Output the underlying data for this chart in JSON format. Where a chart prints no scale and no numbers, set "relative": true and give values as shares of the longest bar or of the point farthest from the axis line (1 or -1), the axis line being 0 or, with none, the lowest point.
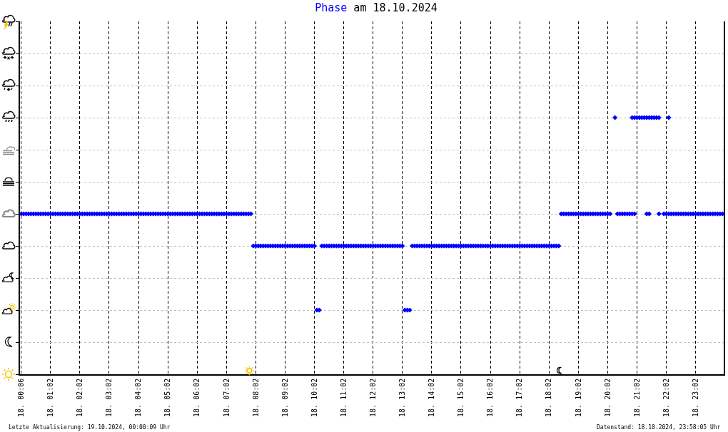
{
  "chart_data": {
    "type": "scatter",
    "title": "Phase am 18.10.2024",
    "relative": true,
    "categories": [
      "18. 00:06",
      null,
      null,
      null,
      null,
      null,
      null,
      null,
      null,
      null,
      null,
      null,
      "18. 01:02",
      null,
      null,
      null,
      null,
      null,
      null,
      null,
      null,
      null,
      null,
      null,
      "18. 02:02",
      null,
      null,
      null,
      null,
      null,
      null,
      null,
      null,
      null,
      null,
      null,
      "18. 03:02",
      null,
      null,
      null,
      null,
      null,
      null,
      null,
      null,
      null,
      null,
      null,
      "18. 04:02",
      null,
      null,
      null,
      null,
      null,
      null,
      null,
      null,
      null,
      null,
      null,
      "18. 05:02",
      null,
      null,
      null,
      null,
      null,
      null,
      null,
      null,
      null,
      null,
      null,
      "18. 06:02",
      null,
      null,
      null,
      null,
      null,
      null,
      null,
      null,
      null,
      null,
      null,
      "18. 07:02",
      null,
      null,
      null,
      null,
      null,
      null,
      null,
      null,
      null,
      null,
      null,
      "18. 08:02",
      null,
      null,
      null,
      null,
      null,
      null,
      null,
      null,
      null,
      null,
      null,
      "18. 09:02",
      null,
      null,
      null,
      null,
      null,
      null,
      null,
      null,
      null,
      null,
      null,
      "18. 10:02",
      null,
      null,
      null,
      null,
      null,
      null,
      null,
      null,
      null,
      null,
      null,
      "18. 11:02",
      null,
      null,
      null,
      null,
      null,
      null,
      null,
      null,
      null,
      null,
      null,
      "18. 12:02",
      null,
      null,
      null,
      null,
      null,
      null,
      null,
      null,
      null,
      null,
      null,
      "18. 13:02",
      null,
      null,
      null,
      null,
      null,
      null,
      null,
      null,
      null,
      null,
      null,
      "18. 14:02",
      null,
      null,
      null,
      null,
      null,
      null,
      null,
      null,
      null,
      null,
      null,
      "18. 15:02",
      null,
      null,
      null,
      null,
      null,
      null,
      null,
      null,
      null,
      null,
      null,
      "18. 16:02",
      null,
      null,
      null,
      null,
      null,
      null,
      null,
      null,
      null,
      null,
      null,
      "18. 17:02",
      null,
      null,
      null,
      null,
      null,
      null,
      null,
      null,
      null,
      null,
      null,
      "18. 18:02",
      null,
      null,
      null,
      null,
      null,
      null,
      null,
      null,
      null,
      null,
      null,
      "18. 19:02",
      null,
      null,
      null,
      null,
      null,
      null,
      null,
      null,
      null,
      null,
      null,
      "18. 20:02",
      null,
      null,
      null,
      null,
      null,
      null,
      null,
      null,
      null,
      null,
      null,
      "18. 21:02",
      null,
      null,
      null,
      null,
      null,
      null,
      null,
      null,
      null,
      null,
      null,
      "18. 22:02",
      null,
      null,
      null,
      null,
      null,
      null,
      null,
      null,
      null,
      null,
      null,
      "18. 23:02",
      null,
      null,
      null,
      null,
      null,
      null,
      null,
      null,
      null,
      null,
      null
    ],
    "series": [
      {
        "color": "#0000ff",
        "values": [
          0.625,
          0.625,
          0.625,
          0.625,
          0.625,
          0.625,
          0.625,
          0.625,
          0.625,
          0.625,
          0.625,
          0.625,
          0.625,
          0.625,
          0.625,
          0.625,
          0.625,
          0.625,
          0.625,
          0.625,
          0.625,
          0.625,
          0.625,
          0.625,
          0.625,
          0.625,
          0.625,
          0.625,
          0.625,
          0.625,
          0.625,
          0.625,
          0.625,
          0.625,
          0.625,
          0.625,
          0.625,
          0.625,
          0.625,
          0.625,
          0.625,
          0.625,
          0.625,
          0.625,
          0.625,
          0.625,
          0.625,
          0.625,
          0.625,
          0.625,
          0.625,
          0.625,
          0.625,
          0.625,
          0.625,
          0.625,
          0.625,
          0.625,
          0.625,
          0.625,
          0.625,
          0.625,
          0.625,
          0.625,
          0.625,
          0.625,
          0.625,
          0.625,
          0.625,
          0.625,
          0.625,
          0.625,
          0.625,
          0.625,
          0.625,
          0.625,
          0.625,
          0.625,
          0.625,
          0.625,
          0.625,
          0.625,
          0.625,
          0.625,
          0.625,
          0.625,
          0.625,
          0.625,
          0.625,
          0.625,
          0.625,
          0.625,
          0.625,
          0.625,
          0.625,
          0.5,
          0.5,
          0.5,
          0.5,
          0.5,
          0.5,
          0.5,
          0.5,
          0.5,
          0.5,
          0.5,
          0.5,
          0.5,
          0.5,
          0.5,
          0.5,
          0.5,
          0.5,
          0.5,
          0.5,
          0.5,
          0.5,
          0.5,
          0.5,
          0.5,
          0.5,
          0.25,
          0.25,
          0.5,
          0.5,
          0.5,
          0.5,
          0.5,
          0.5,
          0.5,
          0.5,
          0.5,
          0.5,
          0.5,
          0.5,
          0.5,
          0.5,
          0.5,
          0.5,
          0.5,
          0.5,
          0.5,
          0.5,
          0.5,
          0.5,
          0.5,
          0.5,
          0.5,
          0.5,
          0.5,
          0.5,
          0.5,
          0.5,
          0.5,
          0.5,
          0.5,
          0.5,
          0.25,
          0.25,
          0.25,
          0.5,
          0.5,
          0.5,
          0.5,
          0.5,
          0.5,
          0.5,
          0.5,
          0.5,
          0.5,
          0.5,
          0.5,
          0.5,
          0.5,
          0.5,
          0.5,
          0.5,
          0.5,
          0.5,
          0.5,
          0.5,
          0.5,
          0.5,
          0.5,
          0.5,
          0.5,
          0.5,
          0.5,
          0.5,
          0.5,
          0.5,
          0.5,
          0.5,
          0.5,
          0.5,
          0.5,
          0.5,
          0.5,
          0.5,
          0.5,
          0.5,
          0.5,
          0.5,
          0.5,
          0.5,
          0.5,
          0.5,
          0.5,
          0.5,
          0.5,
          0.5,
          0.5,
          0.5,
          0.5,
          0.5,
          0.5,
          0.5,
          0.5,
          0.5,
          0.5,
          0.5,
          0.625,
          0.625,
          0.625,
          0.625,
          0.625,
          0.625,
          0.625,
          0.625,
          0.625,
          0.625,
          0.625,
          0.625,
          0.625,
          0.625,
          0.625,
          0.625,
          0.625,
          0.625,
          0.625,
          0.625,
          0.625,
          null,
          1,
          0.625,
          0.625,
          0.625,
          0.625,
          0.625,
          0.625,
          0.625,
          0.625,
          1,
          1,
          1,
          1,
          0.625,
          0.625,
          1,
          1,
          1,
          0.625,
          null,
          0.625,
          0.625,
          0.625,
          0.625,
          0.625,
          0.625,
          0.625,
          0.625,
          0.625,
          0.625,
          0.625,
          0.625,
          0.625,
          0.625,
          0.625,
          0.625,
          0.625,
          0.625,
          0.625,
          0.625,
          0.625,
          0.625,
          0.625,
          0.625,
          0.625
        ]
      },
      {
        "color": "#0000ff",
        "values": [
          null,
          null,
          null,
          null,
          null,
          null,
          null,
          null,
          null,
          null,
          null,
          null,
          null,
          null,
          null,
          null,
          null,
          null,
          null,
          null,
          null,
          null,
          null,
          null,
          null,
          null,
          null,
          null,
          null,
          null,
          null,
          null,
          null,
          null,
          null,
          null,
          null,
          null,
          null,
          null,
          null,
          null,
          null,
          null,
          null,
          null,
          null,
          null,
          null,
          null,
          null,
          null,
          null,
          null,
          null,
          null,
          null,
          null,
          null,
          null,
          null,
          null,
          null,
          null,
          null,
          null,
          null,
          null,
          null,
          null,
          null,
          null,
          null,
          null,
          null,
          null,
          null,
          null,
          null,
          null,
          null,
          null,
          null,
          null,
          null,
          null,
          null,
          null,
          null,
          null,
          null,
          null,
          null,
          null,
          null,
          null,
          null,
          null,
          null,
          null,
          null,
          null,
          null,
          null,
          null,
          null,
          null,
          null,
          null,
          null,
          null,
          null,
          null,
          null,
          null,
          null,
          null,
          null,
          null,
          null,
          null,
          null,
          null,
          null,
          null,
          null,
          null,
          null,
          null,
          null,
          null,
          null,
          null,
          null,
          null,
          null,
          null,
          null,
          null,
          null,
          null,
          null,
          null,
          null,
          null,
          null,
          null,
          null,
          null,
          null,
          null,
          null,
          null,
          null,
          null,
          null,
          null,
          null,
          null,
          null,
          null,
          null,
          null,
          null,
          null,
          null,
          null,
          null,
          null,
          null,
          null,
          null,
          null,
          null,
          null,
          null,
          null,
          null,
          null,
          null,
          null,
          null,
          null,
          null,
          null,
          null,
          null,
          null,
          null,
          null,
          null,
          null,
          null,
          null,
          null,
          null,
          null,
          null,
          null,
          null,
          null,
          null,
          null,
          null,
          null,
          null,
          null,
          null,
          null,
          null,
          null,
          null,
          null,
          null,
          null,
          null,
          null,
          null,
          null,
          null,
          null,
          null,
          null,
          null,
          null,
          null,
          null,
          null,
          null,
          null,
          null,
          null,
          null,
          null,
          null,
          null,
          null,
          null,
          null,
          null,
          null,
          null,
          null,
          null,
          null,
          null,
          null,
          null,
          null,
          null,
          1,
          1,
          null,
          null,
          null,
          null,
          1,
          1,
          null,
          null,
          null,
          1,
          null,
          null,
          null,
          1,
          null,
          null,
          null,
          null,
          null,
          null,
          null,
          null,
          null,
          null,
          null,
          null,
          null,
          null,
          null,
          null,
          null,
          null,
          null,
          null,
          null,
          null
        ]
      }
    ],
    "marker": "diamond",
    "grid": true,
    "annotations": [
      "Letzte Aktualisierung: 19.10.2024, 00:00:09 Uhr",
      "Datenstand: 18.10.2024, 23:58:05 Uhr"
    ]
  }
}
